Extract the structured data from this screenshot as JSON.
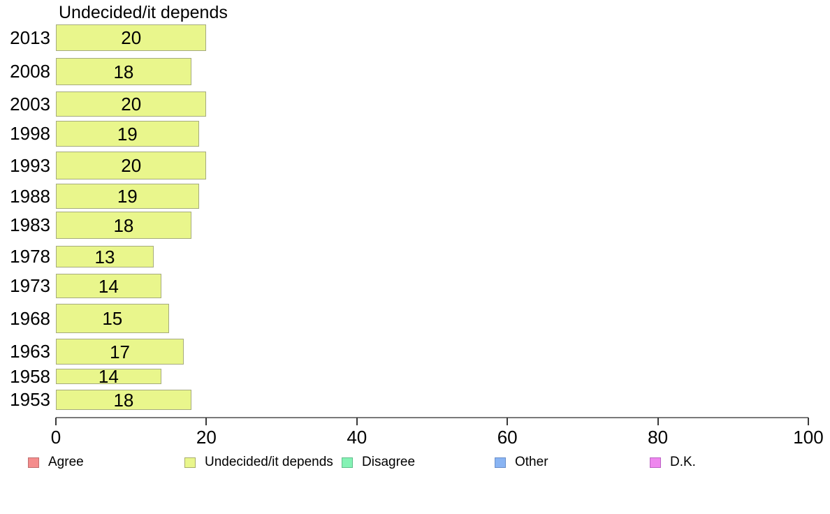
{
  "chart_data": {
    "type": "bar",
    "orientation": "horizontal",
    "title": "Undecided/it depends",
    "categories": [
      "2013",
      "2008",
      "2003",
      "1998",
      "1993",
      "1988",
      "1983",
      "1978",
      "1973",
      "1968",
      "1963",
      "1958",
      "1953"
    ],
    "values": [
      20,
      18,
      20,
      19,
      20,
      19,
      18,
      13,
      14,
      15,
      17,
      14,
      18
    ],
    "bar_value_labels": [
      "20",
      "18",
      "20",
      "19",
      "20",
      "19",
      "18",
      "13",
      "14",
      "15",
      "17",
      "14",
      "18"
    ],
    "xlabel": "",
    "ylabel": "",
    "xlim": [
      0,
      100
    ],
    "x_ticks": [
      0,
      20,
      40,
      60,
      80,
      100
    ],
    "x_tick_labels": [
      "0",
      "20",
      "40",
      "60",
      "80",
      "100"
    ],
    "grid": false,
    "legend_position": "bottom",
    "bar_color": "#e9f68c",
    "bar_border_color": "#a6ab7e",
    "row_layout": [
      {
        "top": 35,
        "height": 38
      },
      {
        "top": 83,
        "height": 39
      },
      {
        "top": 131,
        "height": 36
      },
      {
        "top": 173,
        "height": 37
      },
      {
        "top": 217,
        "height": 40
      },
      {
        "top": 263,
        "height": 36
      },
      {
        "top": 303,
        "height": 39
      },
      {
        "top": 352,
        "height": 31
      },
      {
        "top": 392,
        "height": 35
      },
      {
        "top": 435,
        "height": 42
      },
      {
        "top": 485,
        "height": 37
      },
      {
        "top": 528,
        "height": 22
      },
      {
        "top": 558,
        "height": 29
      }
    ],
    "legend": [
      {
        "label": "Agree",
        "color": "#f48c8c",
        "border": "#bf6f6f"
      },
      {
        "label": "Undecided/it depends",
        "color": "#e9f68c",
        "border": "#a8ad6a"
      },
      {
        "label": "Disagree",
        "color": "#84f2b4",
        "border": "#62bd8c"
      },
      {
        "label": "Other",
        "color": "#89b4f3",
        "border": "#6a8fc9"
      },
      {
        "label": "D.K.",
        "color": "#ee86ee",
        "border": "#bb64c4"
      }
    ]
  }
}
